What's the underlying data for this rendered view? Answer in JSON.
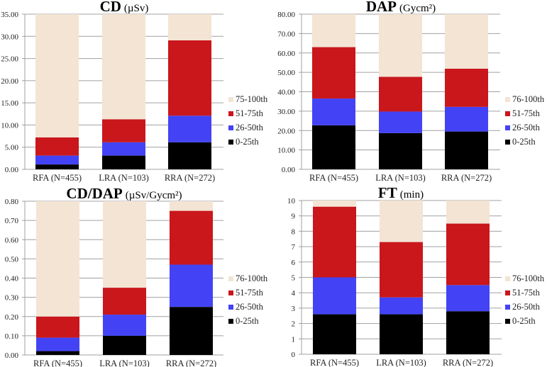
{
  "colors": {
    "p0_25": "#000000",
    "p26_50": "#4343F5",
    "p51_75": "#C9171C",
    "p76_100": "#F3E4D4",
    "grid": "#A0A0A0"
  },
  "chart_data": [
    {
      "type": "bar",
      "stacked": true,
      "title": "CD",
      "unit": "(µSv)",
      "categories": [
        "RFA (N=455)",
        "LRA (N=103)",
        "RRA (N=272)"
      ],
      "ylim": [
        0,
        35
      ],
      "yticks": [
        "0.00",
        "5.00",
        "10.00",
        "15.00",
        "20.00",
        "25.00",
        "30.00",
        "35.00"
      ],
      "ytick_values": [
        0,
        5,
        10,
        15,
        20,
        25,
        30,
        35
      ],
      "legend_position": "right",
      "legend": [
        "75-100th",
        "51-75th",
        "26-50th",
        "0-25th"
      ],
      "cumulative_percentiles": [
        {
          "name": "0-25th",
          "values": [
            1.1,
            3.1,
            6.1
          ]
        },
        {
          "name": "26-50th",
          "values": [
            3.1,
            6.1,
            12.1
          ]
        },
        {
          "name": "51-75th",
          "values": [
            7.2,
            11.3,
            29.1
          ]
        },
        {
          "name": "75-100th",
          "values": [
            35,
            35,
            35
          ]
        }
      ]
    },
    {
      "type": "bar",
      "stacked": true,
      "title": "DAP",
      "unit": "(Gycm²)",
      "categories": [
        "RFA (N=455)",
        "LRA (N=103)",
        "RRA (N=272)"
      ],
      "ylim": [
        0,
        80
      ],
      "yticks": [
        "0.00",
        "10.00",
        "20.00",
        "30.00",
        "40.00",
        "50.00",
        "60.00",
        "70.00",
        "80.00"
      ],
      "ytick_values": [
        0,
        10,
        20,
        30,
        40,
        50,
        60,
        70,
        80
      ],
      "legend_position": "right",
      "legend": [
        "76-100th",
        "51-75th",
        "26-50th",
        "0-25th"
      ],
      "cumulative_percentiles": [
        {
          "name": "0-25th",
          "values": [
            22.7,
            18.7,
            19.5
          ]
        },
        {
          "name": "26-50th",
          "values": [
            36.5,
            29.8,
            32.2
          ]
        },
        {
          "name": "51-75th",
          "values": [
            63.0,
            47.7,
            51.9
          ]
        },
        {
          "name": "76-100th",
          "values": [
            80,
            80,
            80
          ]
        }
      ]
    },
    {
      "type": "bar",
      "stacked": true,
      "title": "CD/DAP",
      "unit": "(µSv/Gycm²)",
      "categories": [
        "RFA (N=455)",
        "LRA (N=103)",
        "RRA (N=272)"
      ],
      "ylim": [
        0,
        0.8
      ],
      "yticks": [
        "0.00",
        "0.10",
        "0.20",
        "0.30",
        "0.40",
        "0.50",
        "0.60",
        "0.70",
        "0.80"
      ],
      "ytick_values": [
        0,
        0.1,
        0.2,
        0.3,
        0.4,
        0.5,
        0.6,
        0.7,
        0.8
      ],
      "legend_position": "right",
      "legend": [
        "76-100th",
        "51-75th",
        "26-50th",
        "0-25th"
      ],
      "cumulative_percentiles": [
        {
          "name": "0-25th",
          "values": [
            0.02,
            0.1,
            0.25
          ]
        },
        {
          "name": "26-50th",
          "values": [
            0.09,
            0.21,
            0.47
          ]
        },
        {
          "name": "51-75th",
          "values": [
            0.2,
            0.35,
            0.75
          ]
        },
        {
          "name": "76-100th",
          "values": [
            0.8,
            0.8,
            0.8
          ]
        }
      ]
    },
    {
      "type": "bar",
      "stacked": true,
      "title": "FT",
      "unit": "(min)",
      "categories": [
        "RFA (N=455)",
        "LRA (N=103)",
        "RRA (N=272)"
      ],
      "ylim": [
        0,
        10
      ],
      "yticks": [
        "0",
        "1",
        "2",
        "3",
        "4",
        "5",
        "6",
        "7",
        "8",
        "9",
        "10"
      ],
      "ytick_values": [
        0,
        1,
        2,
        3,
        4,
        5,
        6,
        7,
        8,
        9,
        10
      ],
      "legend_position": "right",
      "legend": [
        "76-100th",
        "51-75th",
        "26-50th",
        "0-25th"
      ],
      "cumulative_percentiles": [
        {
          "name": "0-25th",
          "values": [
            2.6,
            2.6,
            2.8
          ]
        },
        {
          "name": "26-50th",
          "values": [
            5.0,
            3.7,
            4.5
          ]
        },
        {
          "name": "51-75th",
          "values": [
            9.6,
            7.3,
            8.5
          ]
        },
        {
          "name": "76-100th",
          "values": [
            10,
            10,
            10
          ]
        }
      ]
    }
  ]
}
